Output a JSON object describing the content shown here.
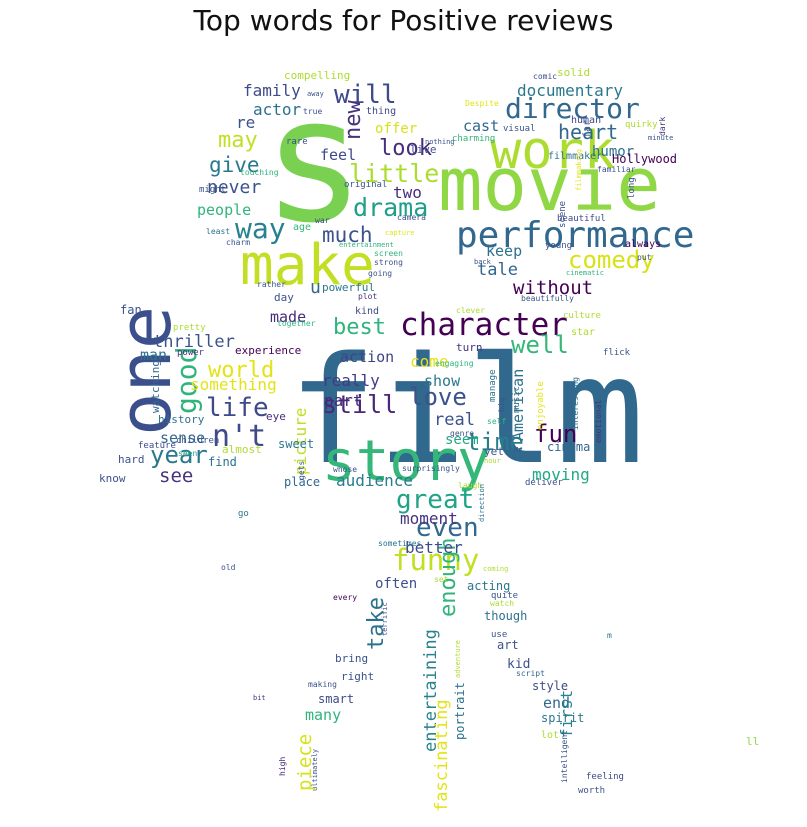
{
  "figure": {
    "title": "Top words for Positive reviews"
  },
  "words": [
    {
      "text": "film",
      "color": "#31688e"
    },
    {
      "text": "movie",
      "color": "#8fd744"
    },
    {
      "text": "s",
      "color": "#7ad151"
    },
    {
      "text": "story",
      "color": "#35b779"
    },
    {
      "text": "one",
      "color": "#3b4f8c"
    },
    {
      "text": "work",
      "color": "#addc30"
    },
    {
      "text": "make",
      "color": "#c2df23"
    },
    {
      "text": "character",
      "color": "#440154"
    },
    {
      "text": "performance",
      "color": "#31688e"
    },
    {
      "text": "director",
      "color": "#31688e"
    },
    {
      "text": "funny",
      "color": "#c2df23"
    },
    {
      "text": "good",
      "color": "#2fb47c"
    },
    {
      "text": "great",
      "color": "#20a386"
    },
    {
      "text": "way",
      "color": "#26828e"
    },
    {
      "text": "little",
      "color": "#addc30"
    },
    {
      "text": "even",
      "color": "#31688e"
    },
    {
      "text": "life",
      "color": "#3e4a89"
    },
    {
      "text": "n't",
      "color": "#3e4a89"
    },
    {
      "text": "time",
      "color": "#287d8e"
    },
    {
      "text": "best",
      "color": "#2fb47c"
    },
    {
      "text": "drama",
      "color": "#1f9e89"
    },
    {
      "text": "comedy",
      "color": "#d8e219"
    },
    {
      "text": "love",
      "color": "#3b528b"
    },
    {
      "text": "still",
      "color": "#482878"
    },
    {
      "text": "well",
      "color": "#35b779"
    },
    {
      "text": "world",
      "color": "#e3e418"
    },
    {
      "text": "year",
      "color": "#2a788e"
    },
    {
      "text": "fun",
      "color": "#440154"
    },
    {
      "text": "will",
      "color": "#3e4a89"
    },
    {
      "text": "look",
      "color": "#472d7b"
    },
    {
      "text": "new",
      "color": "#46337e"
    },
    {
      "text": "heart",
      "color": "#31688e"
    },
    {
      "text": "give",
      "color": "#2a788e"
    },
    {
      "text": "may",
      "color": "#c2df23"
    },
    {
      "text": "much",
      "color": "#3b528b"
    },
    {
      "text": "enough",
      "color": "#2fb47c"
    },
    {
      "text": "entertaining",
      "color": "#26828e"
    },
    {
      "text": "fascinating",
      "color": "#e3e418"
    },
    {
      "text": "take",
      "color": "#2c728e"
    },
    {
      "text": "piece",
      "color": "#d8e219"
    },
    {
      "text": "picture",
      "color": "#bddf26"
    },
    {
      "text": "see",
      "color": "#46337e"
    },
    {
      "text": "without",
      "color": "#440154"
    },
    {
      "text": "documentary",
      "color": "#2a788e"
    },
    {
      "text": "never",
      "color": "#3b528b"
    },
    {
      "text": "tale",
      "color": "#31688e"
    },
    {
      "text": "keep",
      "color": "#2c728e"
    },
    {
      "text": "moment",
      "color": "#46337e"
    },
    {
      "text": "audience",
      "color": "#287d8e"
    },
    {
      "text": "moving",
      "color": "#22a884"
    },
    {
      "text": "sense",
      "color": "#31688e"
    },
    {
      "text": "real",
      "color": "#3b528b"
    },
    {
      "text": "really",
      "color": "#443a83"
    },
    {
      "text": "action",
      "color": "#414487"
    },
    {
      "text": "part",
      "color": "#482878"
    },
    {
      "text": "show",
      "color": "#2a788e"
    },
    {
      "text": "come",
      "color": "#e3e418"
    },
    {
      "text": "seem",
      "color": "#22a884"
    },
    {
      "text": "American",
      "color": "#2c728e"
    },
    {
      "text": "thriller",
      "color": "#3b528b"
    },
    {
      "text": "something",
      "color": "#e3e418"
    },
    {
      "text": "man",
      "color": "#2c728e"
    },
    {
      "text": "made",
      "color": "#472d7b"
    },
    {
      "text": "u",
      "color": "#31688e"
    },
    {
      "text": "people",
      "color": "#2fb47c"
    },
    {
      "text": "two",
      "color": "#472d7b"
    },
    {
      "text": "feel",
      "color": "#3e4a89"
    },
    {
      "text": "re",
      "color": "#3b528b"
    },
    {
      "text": "actor",
      "color": "#2c728e"
    },
    {
      "text": "family",
      "color": "#3e4a89"
    },
    {
      "text": "offer",
      "color": "#d8e219"
    },
    {
      "text": "cast",
      "color": "#31688e"
    },
    {
      "text": "humor",
      "color": "#2c728e"
    },
    {
      "text": "better",
      "color": "#3e4a89"
    },
    {
      "text": "often",
      "color": "#3b528b"
    },
    {
      "text": "acting",
      "color": "#2a788e"
    },
    {
      "text": "end",
      "color": "#31688e"
    },
    {
      "text": "first",
      "color": "#26828e"
    },
    {
      "text": "many",
      "color": "#2fb47c"
    },
    {
      "text": "portrait",
      "color": "#2c728e"
    },
    {
      "text": "Hollywood",
      "color": "#440154"
    },
    {
      "text": "compelling",
      "color": "#addc30"
    },
    {
      "text": "thing",
      "color": "#3e4a89"
    },
    {
      "text": "live",
      "color": "#3b528b"
    },
    {
      "text": "age",
      "color": "#35b779"
    },
    {
      "text": "war",
      "color": "#3e4a89"
    },
    {
      "text": "powerful",
      "color": "#2a788e"
    },
    {
      "text": "kind",
      "color": "#3e4a89"
    },
    {
      "text": "fan",
      "color": "#3b528b"
    },
    {
      "text": "pretty",
      "color": "#addc30"
    },
    {
      "text": "day",
      "color": "#3b528b"
    },
    {
      "text": "plot",
      "color": "#46337e"
    },
    {
      "text": "together",
      "color": "#2fb47c"
    },
    {
      "text": "power",
      "color": "#46337e"
    },
    {
      "text": "experience",
      "color": "#440154"
    },
    {
      "text": "watching",
      "color": "#31688e"
    },
    {
      "text": "history",
      "color": "#2c728e"
    },
    {
      "text": "feature",
      "color": "#3e4a89"
    },
    {
      "text": "children",
      "color": "#3b528b"
    },
    {
      "text": "seen",
      "color": "#20a386"
    },
    {
      "text": "almost",
      "color": "#addc30"
    },
    {
      "text": "hard",
      "color": "#3b528b"
    },
    {
      "text": "find",
      "color": "#2c728e"
    },
    {
      "text": "know",
      "color": "#3b528b"
    },
    {
      "text": "eye",
      "color": "#472d7b"
    },
    {
      "text": "sweet",
      "color": "#2a788e"
    },
    {
      "text": "place",
      "color": "#31688e"
    },
    {
      "text": "gets",
      "color": "#3b528b"
    },
    {
      "text": "whose",
      "color": "#3b528b"
    },
    {
      "text": "every",
      "color": "#440154"
    },
    {
      "text": "terrific",
      "color": "#3b528b"
    },
    {
      "text": "bring",
      "color": "#3b528b"
    },
    {
      "text": "right",
      "color": "#3b528b"
    },
    {
      "text": "making",
      "color": "#3b528b"
    },
    {
      "text": "smart",
      "color": "#3e4a89"
    },
    {
      "text": "high",
      "color": "#482878"
    },
    {
      "text": "ultimately",
      "color": "#3b528b"
    },
    {
      "text": "bit",
      "color": "#46337e"
    },
    {
      "text": "old",
      "color": "#3b528b"
    },
    {
      "text": "go",
      "color": "#2a788e"
    },
    {
      "text": "manage",
      "color": "#2c728e"
    },
    {
      "text": "big",
      "color": "#3b528b"
    },
    {
      "text": "music",
      "color": "#2c728e"
    },
    {
      "text": "turn",
      "color": "#46337e"
    },
    {
      "text": "engaging",
      "color": "#2fb47c"
    },
    {
      "text": "clever",
      "color": "#addc30"
    },
    {
      "text": "culture",
      "color": "#addc30"
    },
    {
      "text": "star",
      "color": "#addc30"
    },
    {
      "text": "flick",
      "color": "#3b528b"
    },
    {
      "text": "interesting",
      "color": "#2c728e"
    },
    {
      "text": "enjoyable",
      "color": "#e3e418"
    },
    {
      "text": "emotional",
      "color": "#46337e"
    },
    {
      "text": "cinema",
      "color": "#31688e"
    },
    {
      "text": "self",
      "color": "#2fb47c"
    },
    {
      "text": "genre",
      "color": "#3b528b"
    },
    {
      "text": "yet",
      "color": "#3b528b"
    },
    {
      "text": "Mr",
      "color": "#3b528b"
    },
    {
      "text": "hour",
      "color": "#addc30"
    },
    {
      "text": "surprisingly",
      "color": "#3b528b"
    },
    {
      "text": "laugh",
      "color": "#addc30"
    },
    {
      "text": "direction",
      "color": "#2c728e"
    },
    {
      "text": "deliver",
      "color": "#3b528b"
    },
    {
      "text": "sometimes",
      "color": "#2c728e"
    },
    {
      "text": "coming",
      "color": "#addc30"
    },
    {
      "text": "set",
      "color": "#addc30"
    },
    {
      "text": "quite",
      "color": "#3b528b"
    },
    {
      "text": "watch",
      "color": "#addc30"
    },
    {
      "text": "though",
      "color": "#2c728e"
    },
    {
      "text": "use",
      "color": "#3b528b"
    },
    {
      "text": "art",
      "color": "#3b528b"
    },
    {
      "text": "kid",
      "color": "#3b528b"
    },
    {
      "text": "adventure",
      "color": "#addc30"
    },
    {
      "text": "script",
      "color": "#31688e"
    },
    {
      "text": "style",
      "color": "#3e4a89"
    },
    {
      "text": "spirit",
      "color": "#2a788e"
    },
    {
      "text": "lot",
      "color": "#addc30"
    },
    {
      "text": "intelligent",
      "color": "#3b528b"
    },
    {
      "text": "feeling",
      "color": "#3e4a89"
    },
    {
      "text": "worth",
      "color": "#3b528b"
    },
    {
      "text": "ll",
      "color": "#8fd744"
    },
    {
      "text": "m",
      "color": "#2a788e"
    },
    {
      "text": "solid",
      "color": "#addc30"
    },
    {
      "text": "comic",
      "color": "#3e4a89"
    },
    {
      "text": "Despite",
      "color": "#e3e418"
    },
    {
      "text": "human",
      "color": "#3e4a89"
    },
    {
      "text": "quirky",
      "color": "#addc30"
    },
    {
      "text": "minute",
      "color": "#3b528b"
    },
    {
      "text": "visual",
      "color": "#3b528b"
    },
    {
      "text": "nothing",
      "color": "#3b528b"
    },
    {
      "text": "far",
      "color": "#3b528b"
    },
    {
      "text": "dark",
      "color": "#46337e"
    },
    {
      "text": "charming",
      "color": "#2fb47c"
    },
    {
      "text": "filmmaker",
      "color": "#2c728e"
    },
    {
      "text": "familiar",
      "color": "#3b528b"
    },
    {
      "text": "filmmaking",
      "color": "#e3e418"
    },
    {
      "text": "long",
      "color": "#3b528b"
    },
    {
      "text": "beautiful",
      "color": "#3e4a89"
    },
    {
      "text": "always",
      "color": "#440154"
    },
    {
      "text": "young",
      "color": "#3b528b"
    },
    {
      "text": "scene",
      "color": "#3b528b"
    },
    {
      "text": "back",
      "color": "#3b528b"
    },
    {
      "text": "put",
      "color": "#3b528b"
    },
    {
      "text": "cinematic",
      "color": "#2fb47c"
    },
    {
      "text": "beautifully",
      "color": "#3b528b"
    },
    {
      "text": "true",
      "color": "#3b528b"
    },
    {
      "text": "away",
      "color": "#3b528b"
    },
    {
      "text": "rare",
      "color": "#3b528b"
    },
    {
      "text": "touching",
      "color": "#2fb47c"
    },
    {
      "text": "might",
      "color": "#3b528b"
    },
    {
      "text": "original",
      "color": "#3b528b"
    },
    {
      "text": "camera",
      "color": "#3b528b"
    },
    {
      "text": "capture",
      "color": "#e3e418"
    },
    {
      "text": "least",
      "color": "#2c728e"
    },
    {
      "text": "charm",
      "color": "#3b528b"
    },
    {
      "text": "entertainment",
      "color": "#2fb47c"
    },
    {
      "text": "screen",
      "color": "#2fb47c"
    },
    {
      "text": "strong",
      "color": "#3b528b"
    },
    {
      "text": "going",
      "color": "#3b528b"
    },
    {
      "text": "rather",
      "color": "#3b528b"
    }
  ]
}
